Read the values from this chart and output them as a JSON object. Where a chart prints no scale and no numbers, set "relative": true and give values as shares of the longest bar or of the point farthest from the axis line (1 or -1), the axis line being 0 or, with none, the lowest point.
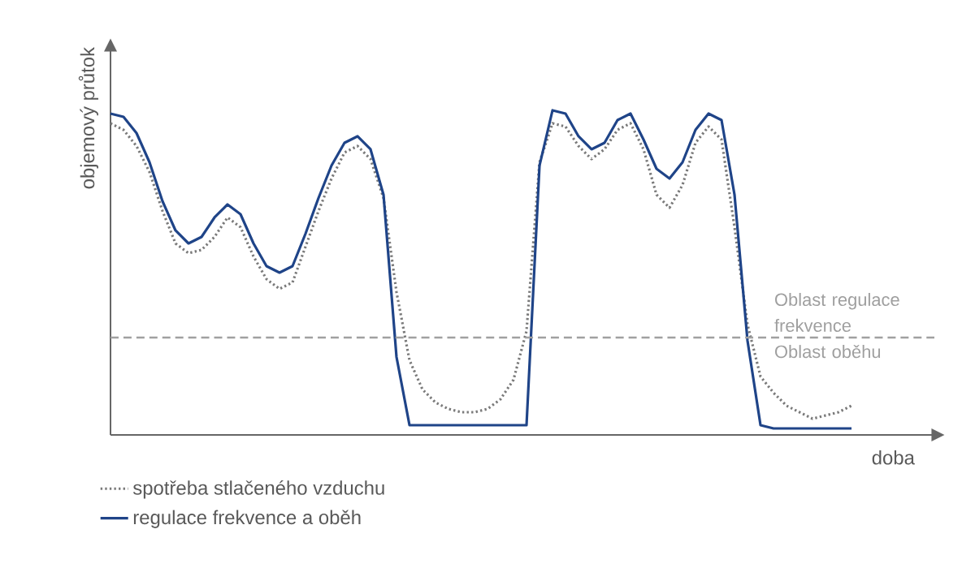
{
  "chart_data": {
    "type": "line",
    "relative": true,
    "xlabel": "doba",
    "ylabel": "objemový průtok",
    "tick_labels": false,
    "legend": "bottom left",
    "marker": "none",
    "categories": [
      null,
      null,
      null,
      null,
      null,
      null,
      null,
      null,
      null,
      null,
      null,
      null,
      null,
      null,
      null,
      null,
      null,
      null,
      null,
      null,
      null,
      null,
      null,
      null,
      null,
      null,
      null,
      null,
      null,
      null,
      null,
      null,
      null,
      null,
      null,
      null,
      null,
      null,
      null,
      null,
      null,
      null,
      null,
      null,
      null,
      null,
      null,
      null,
      null,
      null,
      null,
      null,
      null,
      null,
      null,
      null,
      null,
      null
    ],
    "series": [
      {
        "name": "spotřeba stlačeného vzduchu",
        "color": "#7a7a7a",
        "line_style": "dotted",
        "values": [
          0.96,
          0.94,
          0.89,
          0.81,
          0.69,
          0.59,
          0.56,
          0.57,
          0.61,
          0.67,
          0.64,
          0.55,
          0.48,
          0.45,
          0.47,
          0.58,
          0.69,
          0.79,
          0.87,
          0.89,
          0.85,
          0.73,
          0.44,
          0.23,
          0.14,
          0.1,
          0.08,
          0.07,
          0.07,
          0.08,
          0.11,
          0.17,
          0.32,
          0.84,
          0.96,
          0.95,
          0.89,
          0.85,
          0.88,
          0.94,
          0.96,
          0.88,
          0.74,
          0.7,
          0.77,
          0.9,
          0.95,
          0.91,
          0.64,
          0.34,
          0.18,
          0.13,
          0.09,
          0.07,
          0.05,
          0.06,
          0.07,
          0.09
        ]
      },
      {
        "name": "regulace frekvence a oběh",
        "color": "#1f4488",
        "line_style": "solid",
        "values": [
          0.99,
          0.98,
          0.93,
          0.84,
          0.72,
          0.63,
          0.59,
          0.61,
          0.67,
          0.71,
          0.68,
          0.59,
          0.52,
          0.5,
          0.52,
          0.62,
          0.73,
          0.83,
          0.9,
          0.92,
          0.88,
          0.74,
          0.24,
          0.03,
          0.03,
          0.03,
          0.03,
          0.03,
          0.03,
          0.03,
          0.03,
          0.03,
          0.03,
          0.83,
          1.0,
          0.99,
          0.92,
          0.88,
          0.9,
          0.97,
          0.99,
          0.91,
          0.82,
          0.79,
          0.84,
          0.94,
          0.99,
          0.97,
          0.74,
          0.29,
          0.03,
          0.02,
          0.02,
          0.02,
          0.02,
          0.02,
          0.02,
          0.02
        ]
      }
    ],
    "ref_lines": [
      {
        "axis": "y",
        "value": 0.3,
        "color": "#a0a0a0",
        "line_style": "dashed"
      }
    ],
    "annotations": [
      "Oblast regulace frekvence",
      "Oblast oběhu"
    ]
  }
}
